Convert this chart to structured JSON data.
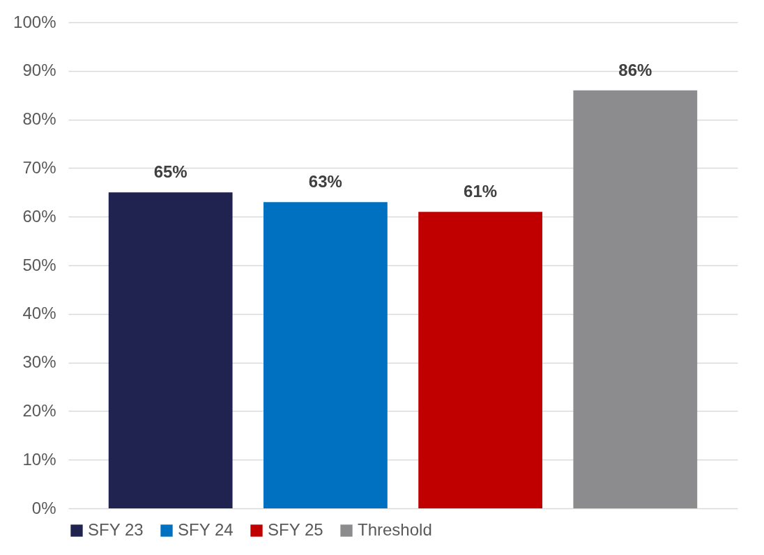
{
  "chart_data": {
    "type": "bar",
    "categories": [
      null
    ],
    "series": [
      {
        "name": "SFY 23",
        "color": "#20234f",
        "values": [
          65
        ],
        "value_labels": [
          "65%"
        ]
      },
      {
        "name": "SFY 24",
        "color": "#0070c0",
        "values": [
          63
        ],
        "value_labels": [
          "63%"
        ]
      },
      {
        "name": "SFY 25",
        "color": "#c00000",
        "values": [
          61
        ],
        "value_labels": [
          "61%"
        ]
      },
      {
        "name": "Threshold",
        "color": "#8c8c8e",
        "values": [
          86
        ],
        "value_labels": [
          "86%"
        ]
      }
    ],
    "ylim": [
      0,
      100
    ],
    "yticks": [
      {
        "value": 0,
        "label": "0%"
      },
      {
        "value": 10,
        "label": "10%"
      },
      {
        "value": 20,
        "label": "20%"
      },
      {
        "value": 30,
        "label": "30%"
      },
      {
        "value": 40,
        "label": "40%"
      },
      {
        "value": 50,
        "label": "50%"
      },
      {
        "value": 60,
        "label": "60%"
      },
      {
        "value": 70,
        "label": "70%"
      },
      {
        "value": 80,
        "label": "80%"
      },
      {
        "value": 90,
        "label": "90%"
      },
      {
        "value": 100,
        "label": "100%"
      }
    ],
    "grid": "y",
    "legend": "bottom"
  }
}
